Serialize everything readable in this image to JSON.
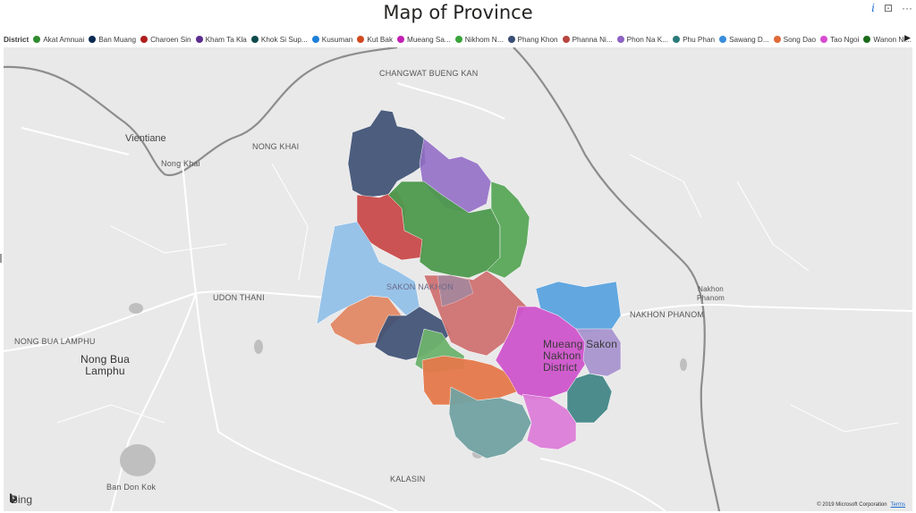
{
  "title": "Map of Province",
  "toolbar": {
    "info": "i",
    "focus": "⊡",
    "more": "···"
  },
  "legend": {
    "title": "District",
    "items": [
      {
        "label": "Akat Amnuai",
        "color": "#2e8b2e"
      },
      {
        "label": "Ban Muang",
        "color": "#0b2a52"
      },
      {
        "label": "Charoen Sin",
        "color": "#b01e1e"
      },
      {
        "label": "Kham Ta Kla",
        "color": "#5b2d8e"
      },
      {
        "label": "Khok Si Sup...",
        "color": "#0f4a4a"
      },
      {
        "label": "Kusuman",
        "color": "#1e7fd6"
      },
      {
        "label": "Kut Bak",
        "color": "#d2491f"
      },
      {
        "label": "Mueang Sa...",
        "color": "#c21fb4"
      },
      {
        "label": "Nikhom N...",
        "color": "#3aa33a"
      },
      {
        "label": "Phang Khon",
        "color": "#3b4e75"
      },
      {
        "label": "Phanna Ni...",
        "color": "#b8463f"
      },
      {
        "label": "Phon Na K...",
        "color": "#8e63c4"
      },
      {
        "label": "Phu Phan",
        "color": "#2c7a7a"
      },
      {
        "label": "Sawang D...",
        "color": "#3a8ddb"
      },
      {
        "label": "Song Dao",
        "color": "#e06a3a"
      },
      {
        "label": "Tao Ngoi",
        "color": "#d84bd0"
      },
      {
        "label": "Wanon Ni...",
        "color": "#1a6b1a"
      }
    ]
  },
  "map_labels": {
    "vientiane": "Vientiane",
    "nong_khai_city": "Nong Khai",
    "nong_khai": "NONG KHAI",
    "changwat_bueng_kan": "CHANGWAT BUENG KAN",
    "udon_thani": "UDON THANI",
    "sakon_nakhon": "SAKON NAKHON",
    "nakhon_phanom_city": "Nakhon\nPhanom",
    "nakhon_phanom": "NAKHON PHANOM",
    "nong_bua_lamphu": "NONG BUA LAMPHU",
    "nong_bua_lamphu_city": "Nong Bua\nLamphu",
    "mueang_sakon": "Mueang Sakon\nNakhon\nDistrict",
    "ban_don_kok": "Ban Don Kok",
    "kalasin": "KALASIN"
  },
  "attribution": {
    "bing": "Bing",
    "copyright": "© 2019 Microsoft Corporation",
    "terms": "Terms"
  }
}
